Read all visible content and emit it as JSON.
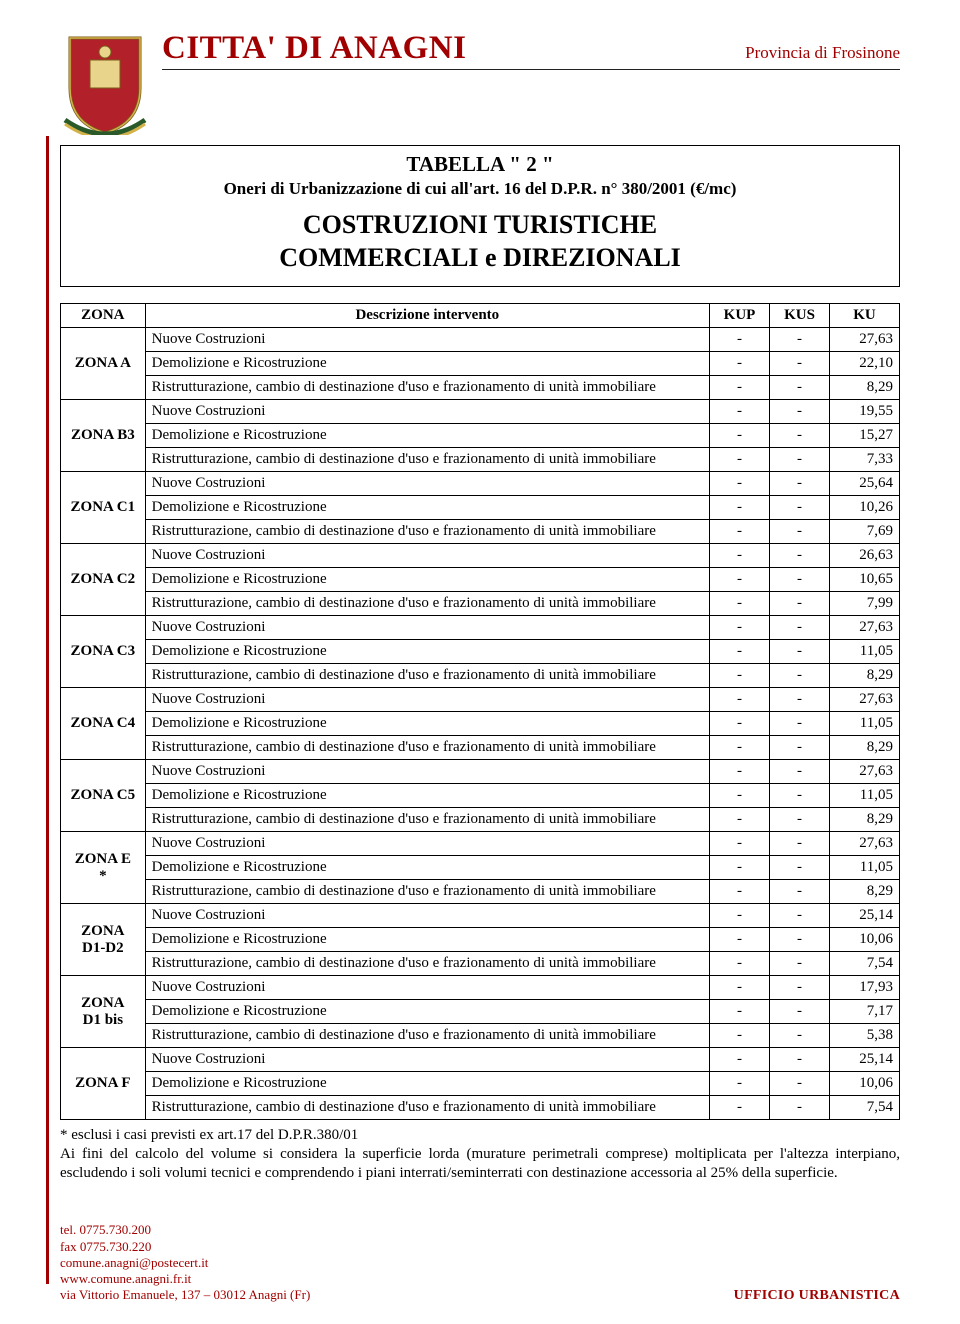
{
  "colors": {
    "brand": "#a00000",
    "text": "#000000",
    "border": "#000000",
    "background": "#ffffff"
  },
  "header": {
    "org_title": "CITTA' DI ANAGNI",
    "province": "Provincia di Frosinone"
  },
  "titlebox": {
    "name": "TABELLA \" 2 \"",
    "subtitle": "Oneri di Urbanizzazione di cui all'art. 16 del D.P.R. n° 380/2001 (€/mc)",
    "main_line1": "COSTRUZIONI TURISTICHE",
    "main_line2": "COMMERCIALI e DIREZIONALI"
  },
  "table": {
    "head": {
      "zona": "ZONA",
      "desc": "Descrizione intervento",
      "kup": "KUP",
      "kus": "KUS",
      "ku": "KU"
    },
    "desc_labels": {
      "nc": "Nuove Costruzioni",
      "dr": "Demolizione e Ricostruzione",
      "ri": "Ristrutturazione, cambio di destinazione d'uso e frazionamento di unità immobiliare"
    },
    "zones": [
      {
        "name": "ZONA A",
        "rows": [
          [
            "-",
            "-",
            "27,63"
          ],
          [
            "-",
            "-",
            "22,10"
          ],
          [
            "-",
            "-",
            "8,29"
          ]
        ]
      },
      {
        "name": "ZONA B3",
        "rows": [
          [
            "-",
            "-",
            "19,55"
          ],
          [
            "-",
            "-",
            "15,27"
          ],
          [
            "-",
            "-",
            "7,33"
          ]
        ]
      },
      {
        "name": "ZONA C1",
        "rows": [
          [
            "-",
            "-",
            "25,64"
          ],
          [
            "-",
            "-",
            "10,26"
          ],
          [
            "-",
            "-",
            "7,69"
          ]
        ]
      },
      {
        "name": "ZONA C2",
        "rows": [
          [
            "-",
            "-",
            "26,63"
          ],
          [
            "-",
            "-",
            "10,65"
          ],
          [
            "-",
            "-",
            "7,99"
          ]
        ]
      },
      {
        "name": "ZONA C3",
        "rows": [
          [
            "-",
            "-",
            "27,63"
          ],
          [
            "-",
            "-",
            "11,05"
          ],
          [
            "-",
            "-",
            "8,29"
          ]
        ]
      },
      {
        "name": "ZONA C4",
        "rows": [
          [
            "-",
            "-",
            "27,63"
          ],
          [
            "-",
            "-",
            "11,05"
          ],
          [
            "-",
            "-",
            "8,29"
          ]
        ]
      },
      {
        "name": "ZONA C5",
        "rows": [
          [
            "-",
            "-",
            "27,63"
          ],
          [
            "-",
            "-",
            "11,05"
          ],
          [
            "-",
            "-",
            "8,29"
          ]
        ]
      },
      {
        "name": "ZONA E\n*",
        "rows": [
          [
            "-",
            "-",
            "27,63"
          ],
          [
            "-",
            "-",
            "11,05"
          ],
          [
            "-",
            "-",
            "8,29"
          ]
        ]
      },
      {
        "name": "ZONA\nD1-D2",
        "rows": [
          [
            "-",
            "-",
            "25,14"
          ],
          [
            "-",
            "-",
            "10,06"
          ],
          [
            "-",
            "-",
            "7,54"
          ]
        ]
      },
      {
        "name": "ZONA\nD1 bis",
        "rows": [
          [
            "-",
            "-",
            "17,93"
          ],
          [
            "-",
            "-",
            "7,17"
          ],
          [
            "-",
            "-",
            "5,38"
          ]
        ]
      },
      {
        "name": "ZONA F",
        "rows": [
          [
            "-",
            "-",
            "25,14"
          ],
          [
            "-",
            "-",
            "10,06"
          ],
          [
            "-",
            "-",
            "7,54"
          ]
        ]
      }
    ]
  },
  "footnote": {
    "line1": "* esclusi i casi previsti ex art.17 del D.P.R.380/01",
    "line2": "Ai fini del calcolo del volume si considera la superficie lorda (murature perimetrali comprese) moltiplicata per l'altezza interpiano, escludendo i soli volumi tecnici e comprendendo i piani interrati/seminterrati con destinazione accessoria al 25% della superficie."
  },
  "footer": {
    "tel": "tel. 0775.730.200",
    "fax": "fax 0775.730.220",
    "pec": "comune.anagni@postecert.it",
    "web": "www.comune.anagni.fr.it",
    "addr": "via Vittorio Emanuele, 137 – 03012 Anagni (Fr)",
    "office": "UFFICIO URBANISTICA"
  }
}
